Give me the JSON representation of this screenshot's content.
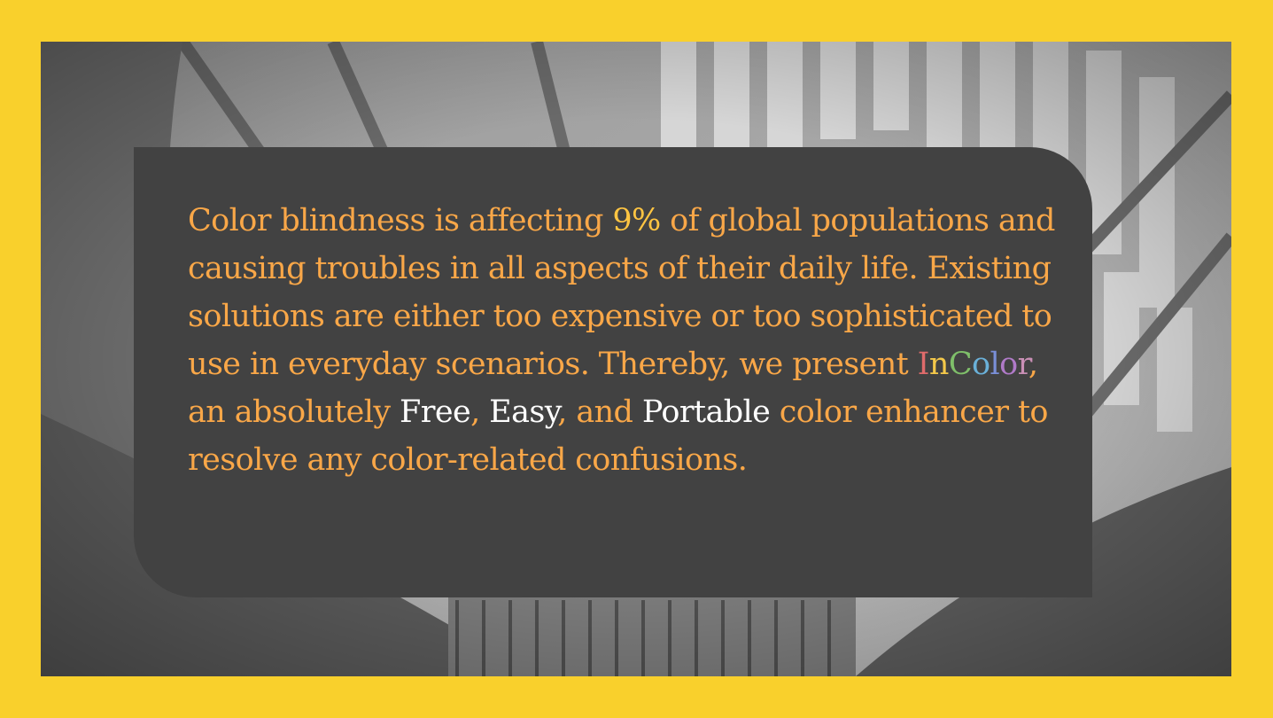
{
  "message": {
    "seg1": "Color blindness is affecting ",
    "percent": "9%",
    "seg2": " of global populations and causing troubles in all aspects of their daily life. Existing solutions are either too expensive or too sophisticated to use in everyday scenarios. Thereby, we present ",
    "brand_letters": [
      "I",
      "n",
      "C",
      "o",
      "l",
      "o",
      "r"
    ],
    "brand_colors": [
      "#e06b6b",
      "#f4c84a",
      "#7fbf6a",
      "#6ab0d8",
      "#7a8fd8",
      "#b07ac8",
      "#c98fb5"
    ],
    "seg3": ", an absolutely ",
    "free": "Free",
    "comma1": ", ",
    "easy": "Easy",
    "seg4": ", and ",
    "portable": "Portable",
    "seg5": " color enhancer to resolve any color-related confusions."
  },
  "colors": {
    "frame": "#f9d02c",
    "card": "#424242",
    "text": "#f9a748",
    "highlight": "#ffffff"
  }
}
